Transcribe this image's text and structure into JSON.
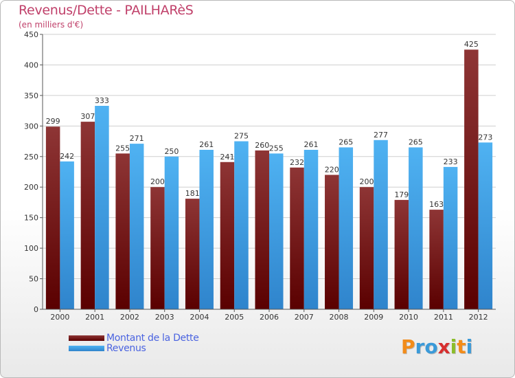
{
  "chart_data": {
    "type": "bar",
    "title": "Revenus/Dette - PAILHARèS",
    "subtitle": "(en milliers d'€)",
    "xlabel": "",
    "ylabel": "",
    "ylim": [
      0,
      450
    ],
    "yticks": [
      0,
      50,
      100,
      150,
      200,
      250,
      300,
      350,
      400,
      450
    ],
    "grid": true,
    "legend_position": "bottom-left",
    "categories": [
      "2000",
      "2001",
      "2002",
      "2003",
      "2004",
      "2005",
      "2006",
      "2007",
      "2008",
      "2009",
      "2010",
      "2011",
      "2012"
    ],
    "series": [
      {
        "name": "Montant de la Dette",
        "color": "#7a1414",
        "values": [
          299,
          307,
          255,
          200,
          181,
          241,
          260,
          232,
          220,
          200,
          179,
          163,
          425
        ]
      },
      {
        "name": "Revenus",
        "color": "#3f9fe6",
        "values": [
          242,
          333,
          271,
          250,
          261,
          275,
          255,
          261,
          265,
          277,
          265,
          233,
          273
        ]
      }
    ]
  },
  "logo": {
    "letters": [
      {
        "char": "P",
        "color": "#f28c1a"
      },
      {
        "char": "r",
        "color": "#3a9ad9"
      },
      {
        "char": "o",
        "color": "#3a9ad9"
      },
      {
        "char": "x",
        "color": "#d72f2f"
      },
      {
        "char": "i",
        "color": "#8bbd2a"
      },
      {
        "char": "t",
        "color": "#f28c1a"
      },
      {
        "char": "i",
        "color": "#3a9ad9"
      }
    ]
  }
}
